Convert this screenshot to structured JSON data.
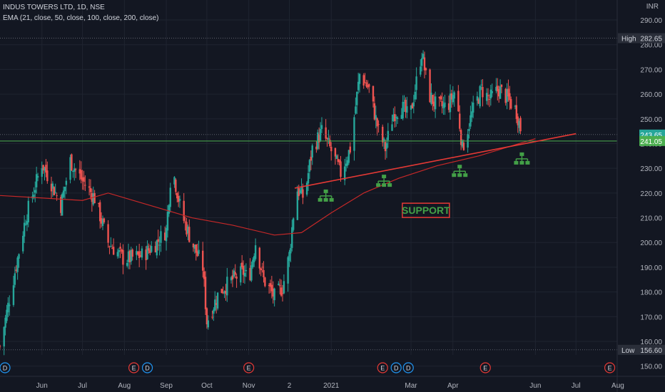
{
  "header": {
    "title": "INDUS TOWERS LTD, 1D, NSE",
    "indicator": "EMA (21, close, 50, close, 100, close, 200, close)"
  },
  "currency": "INR",
  "colors": {
    "background": "#131722",
    "grid": "#1f2430",
    "up": "#26a69a",
    "down": "#ef5350",
    "ema": "#c62828",
    "trendline": "#e53935",
    "support_line": "#4caf50",
    "pivot_icon": "#43a047",
    "annotation": "#e53935",
    "text": "#b2b5be"
  },
  "chart_data": {
    "type": "candlestick",
    "title": "INDUS TOWERS LTD, 1D, NSE",
    "ylim": [
      145,
      295
    ],
    "y_ticks": [
      150,
      160,
      170,
      180,
      190,
      200,
      210,
      220,
      230,
      240,
      250,
      260,
      270,
      280,
      290
    ],
    "y_tick_labels": [
      "150.00",
      "160.00",
      "170.00",
      "180.00",
      "190.00",
      "200.00",
      "210.00",
      "220.00",
      "230.00",
      "240.00",
      "250.00",
      "260.00",
      "270.00",
      "280.00",
      "290.00"
    ],
    "x_tick_labels": [
      "Jun",
      "Jul",
      "Aug",
      "Sep",
      "Oct",
      "Nov",
      "2",
      "2021",
      "Mar",
      "Apr",
      "Jun",
      "Jul",
      "Aug"
    ],
    "x_tick_dates": [
      "2020-06-01",
      "2020-07-01",
      "2020-08-01",
      "2020-09-01",
      "2020-10-01",
      "2020-11-01",
      "2020-12-01",
      "2021-01-01",
      "2021-03-01",
      "2021-04-01",
      "2021-06-01",
      "2021-07-01",
      "2021-08-01"
    ],
    "x_range": [
      "2020-05-01",
      "2021-08-10"
    ],
    "price_path": [
      {
        "date": "2020-05-01",
        "price": 158
      },
      {
        "date": "2020-05-20",
        "price": 210
      },
      {
        "date": "2020-06-01",
        "price": 232
      },
      {
        "date": "2020-06-08",
        "price": 224
      },
      {
        "date": "2020-06-15",
        "price": 215
      },
      {
        "date": "2020-06-22",
        "price": 233
      },
      {
        "date": "2020-07-01",
        "price": 225
      },
      {
        "date": "2020-07-10",
        "price": 218
      },
      {
        "date": "2020-07-20",
        "price": 200
      },
      {
        "date": "2020-08-01",
        "price": 193
      },
      {
        "date": "2020-08-15",
        "price": 195
      },
      {
        "date": "2020-08-25",
        "price": 200
      },
      {
        "date": "2020-09-01",
        "price": 205
      },
      {
        "date": "2020-09-05",
        "price": 232
      },
      {
        "date": "2020-09-12",
        "price": 212
      },
      {
        "date": "2020-09-20",
        "price": 200
      },
      {
        "date": "2020-09-28",
        "price": 190
      },
      {
        "date": "2020-10-01",
        "price": 168
      },
      {
        "date": "2020-10-10",
        "price": 180
      },
      {
        "date": "2020-10-20",
        "price": 185
      },
      {
        "date": "2020-10-28",
        "price": 188
      },
      {
        "date": "2020-11-01",
        "price": 185
      },
      {
        "date": "2020-11-06",
        "price": 200
      },
      {
        "date": "2020-11-12",
        "price": 185
      },
      {
        "date": "2020-11-20",
        "price": 178
      },
      {
        "date": "2020-11-26",
        "price": 182
      },
      {
        "date": "2020-12-01",
        "price": 195
      },
      {
        "date": "2020-12-06",
        "price": 222
      },
      {
        "date": "2020-12-12",
        "price": 218
      },
      {
        "date": "2020-12-18",
        "price": 238
      },
      {
        "date": "2020-12-25",
        "price": 245
      },
      {
        "date": "2021-01-01",
        "price": 237
      },
      {
        "date": "2021-01-08",
        "price": 228
      },
      {
        "date": "2021-01-15",
        "price": 238
      },
      {
        "date": "2021-01-22",
        "price": 268
      },
      {
        "date": "2021-01-29",
        "price": 262
      },
      {
        "date": "2021-02-05",
        "price": 245
      },
      {
        "date": "2021-02-10",
        "price": 238
      },
      {
        "date": "2021-02-16",
        "price": 252
      },
      {
        "date": "2021-02-22",
        "price": 255
      },
      {
        "date": "2021-02-28",
        "price": 250
      },
      {
        "date": "2021-03-06",
        "price": 268
      },
      {
        "date": "2021-03-09",
        "price": 277
      },
      {
        "date": "2021-03-14",
        "price": 260
      },
      {
        "date": "2021-03-20",
        "price": 255
      },
      {
        "date": "2021-03-28",
        "price": 255
      },
      {
        "date": "2021-04-03",
        "price": 262
      },
      {
        "date": "2021-04-08",
        "price": 238
      },
      {
        "date": "2021-04-15",
        "price": 252
      },
      {
        "date": "2021-04-22",
        "price": 262
      },
      {
        "date": "2021-04-28",
        "price": 258
      },
      {
        "date": "2021-05-05",
        "price": 262
      },
      {
        "date": "2021-05-12",
        "price": 258
      },
      {
        "date": "2021-05-18",
        "price": 253
      },
      {
        "date": "2021-05-22",
        "price": 244
      }
    ],
    "ema_200": [
      {
        "date": "2020-05-01",
        "price": 219
      },
      {
        "date": "2020-06-01",
        "price": 218
      },
      {
        "date": "2020-07-01",
        "price": 217
      },
      {
        "date": "2020-07-20",
        "price": 220
      },
      {
        "date": "2020-08-20",
        "price": 215
      },
      {
        "date": "2020-09-20",
        "price": 210
      },
      {
        "date": "2020-10-20",
        "price": 207
      },
      {
        "date": "2020-11-20",
        "price": 203
      },
      {
        "date": "2020-12-10",
        "price": 204
      },
      {
        "date": "2021-01-01",
        "price": 212
      },
      {
        "date": "2021-01-25",
        "price": 220
      },
      {
        "date": "2021-02-20",
        "price": 226
      },
      {
        "date": "2021-03-20",
        "price": 231
      },
      {
        "date": "2021-04-20",
        "price": 235
      },
      {
        "date": "2021-05-20",
        "price": 240
      },
      {
        "date": "2021-06-01",
        "price": 242
      }
    ],
    "support_trendline": {
      "from": {
        "date": "2020-12-05",
        "price": 222
      },
      "to": {
        "date": "2021-07-01",
        "price": 244
      }
    },
    "horizontal_line": {
      "price": 241.05,
      "label": "241.05"
    },
    "last_price": {
      "price": 243.65,
      "label": "243.65"
    },
    "high": {
      "price": 282.65,
      "label": "High",
      "value": "282.65"
    },
    "low": {
      "price": 156.6,
      "label": "Low",
      "value": "156.60"
    },
    "pivot_markers": [
      {
        "date": "2020-12-28",
        "price": 222
      },
      {
        "date": "2021-02-09",
        "price": 228
      },
      {
        "date": "2021-04-06",
        "price": 232
      },
      {
        "date": "2021-05-22",
        "price": 237
      }
    ],
    "annotation": {
      "text": "SUPPORT",
      "date": "2021-03-12",
      "price": 213
    },
    "events": [
      {
        "date": "2020-05-01",
        "letter": "D",
        "kind": "dividend"
      },
      {
        "date": "2020-08-08",
        "letter": "E",
        "kind": "earnings"
      },
      {
        "date": "2020-08-18",
        "letter": "D",
        "kind": "dividend"
      },
      {
        "date": "2020-11-01",
        "letter": "E",
        "kind": "earnings"
      },
      {
        "date": "2021-02-08",
        "letter": "E",
        "kind": "earnings"
      },
      {
        "date": "2021-02-18",
        "letter": "D",
        "kind": "dividend"
      },
      {
        "date": "2021-02-27",
        "letter": "D",
        "kind": "dividend"
      },
      {
        "date": "2021-04-25",
        "letter": "E",
        "kind": "earnings"
      },
      {
        "date": "2021-07-26",
        "letter": "E",
        "kind": "earnings"
      }
    ]
  }
}
